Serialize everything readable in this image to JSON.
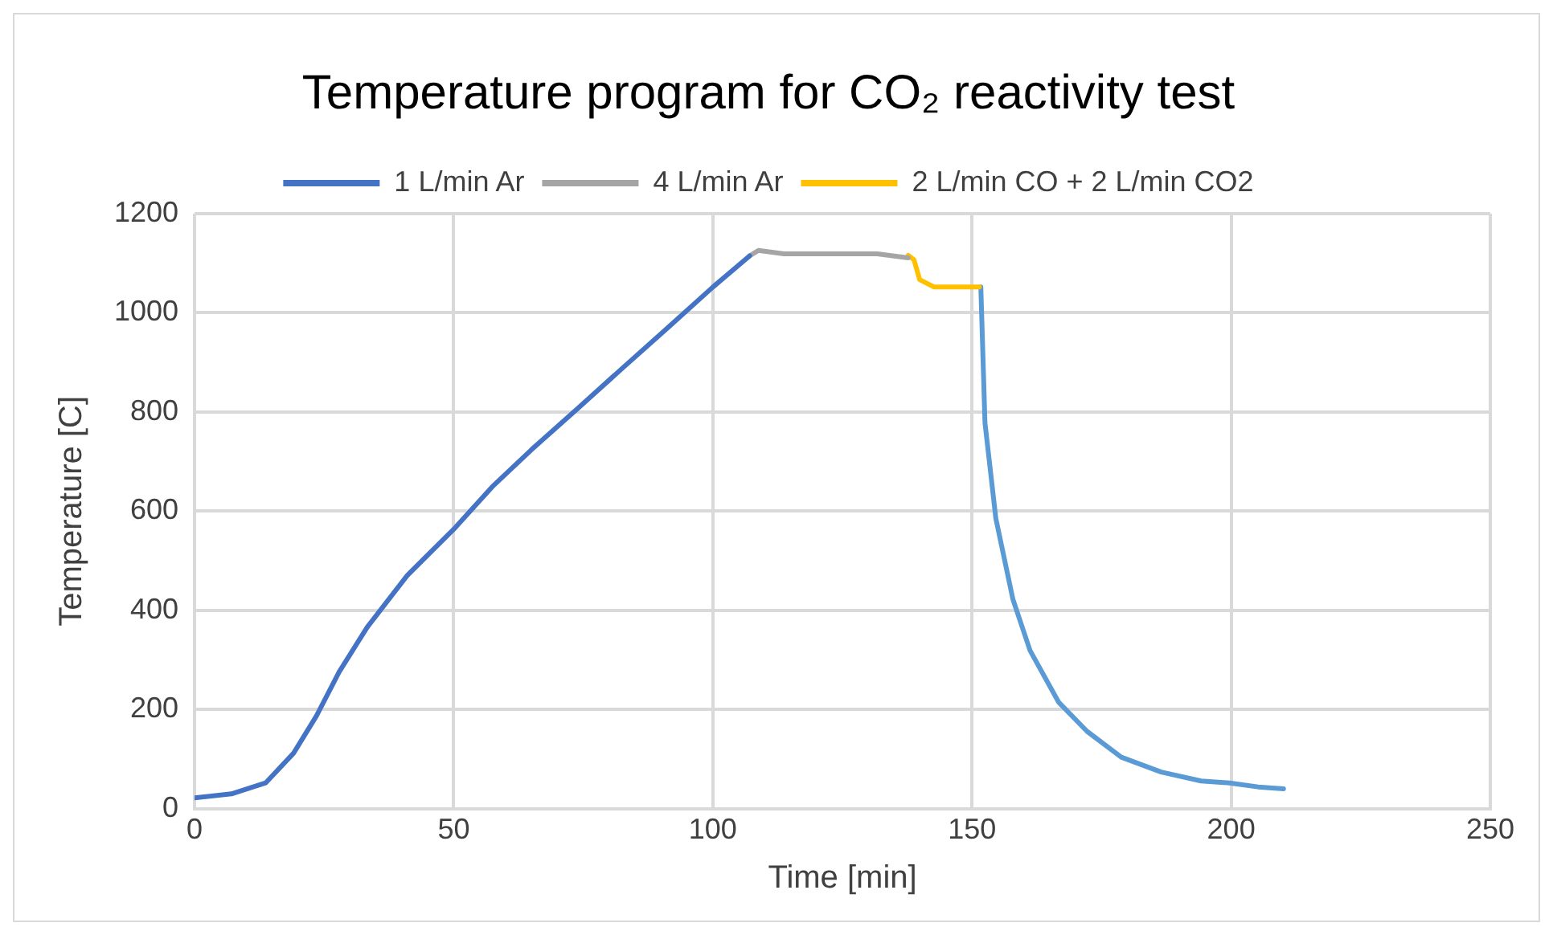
{
  "chart_data": {
    "type": "line",
    "title": "Temperature program for CO₂ reactivity test",
    "xlabel": "Time [min]",
    "ylabel": "Temperature [C]",
    "xlim": [
      0,
      250
    ],
    "xticks": [
      0,
      50,
      100,
      150,
      200,
      250
    ],
    "ylim": [
      0,
      1200
    ],
    "yticks": [
      0,
      200,
      400,
      600,
      800,
      1000,
      1200
    ],
    "grid": true,
    "legend": "top",
    "marker": "none",
    "line_style": "solid",
    "series": [
      {
        "name": "1 L/min Ar",
        "color": "#4472c4",
        "x": [
          0,
          7.1,
          13.7,
          19.1,
          23.5,
          27.9,
          33.3,
          41,
          50.3,
          57.4,
          65,
          73.8,
          82.5,
          91.3,
          100,
          107.1
        ],
        "values": [
          22,
          30,
          52,
          112,
          187,
          276,
          366,
          470,
          567,
          649,
          724,
          806,
          888,
          970,
          1052,
          1115
        ]
      },
      {
        "name": "4 L/min Ar",
        "color": "#a5a5a5",
        "x": [
          107.1,
          108.8,
          113.7,
          131.7,
          137.7
        ],
        "values": [
          1115,
          1126,
          1119,
          1119,
          1111
        ]
      },
      {
        "name": "2 L/min CO + 2 L/min CO2",
        "color": "#ffc000",
        "x": [
          137.7,
          138.8,
          139.9,
          142.7,
          151.4
        ],
        "values": [
          1116,
          1107,
          1067,
          1052,
          1052
        ]
      },
      {
        "color": "#5b9bd5",
        "x": [
          151.7,
          152.5,
          154.6,
          157.9,
          161.2,
          166.7,
          172.2,
          178.8,
          186.5,
          194.2,
          199.7,
          205.2,
          210.1
        ],
        "values": [
          1052,
          778,
          585,
          422,
          319,
          215,
          156,
          104,
          74,
          56,
          52,
          44,
          40
        ]
      }
    ]
  }
}
